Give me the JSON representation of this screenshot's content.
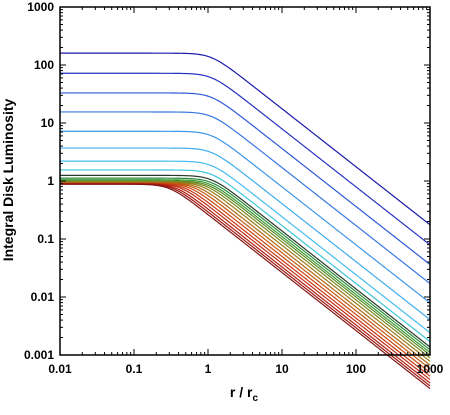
{
  "chart_data": {
    "type": "line",
    "xlabel": "r / r",
    "xlabel_subscript": "c",
    "ylabel": "Integral  Disk  Luminosity",
    "x_scale": "log",
    "y_scale": "log",
    "xlim": [
      0.01,
      1000
    ],
    "ylim": [
      0.001,
      1000
    ],
    "x_ticks": [
      "0.01",
      "0.1",
      "1",
      "10",
      "100",
      "1000"
    ],
    "y_ticks": [
      "0.001",
      "0.01",
      "0.1",
      "1",
      "10",
      "100",
      "1000"
    ],
    "grid": false,
    "legend": "none",
    "series_model": "plateau then power-law fall-off (slope -1 in log-log)",
    "series": [
      {
        "plateau": 160,
        "knee": 1.1,
        "color": "#1a1aa6"
      },
      {
        "plateau": 72,
        "knee": 1.1,
        "color": "#2630c0"
      },
      {
        "plateau": 33,
        "knee": 1.1,
        "color": "#2f5ad6"
      },
      {
        "plateau": 15.5,
        "knee": 1.1,
        "color": "#3a78e0"
      },
      {
        "plateau": 7.2,
        "knee": 1.1,
        "color": "#3c95e8"
      },
      {
        "plateau": 3.7,
        "knee": 1.1,
        "color": "#40acee"
      },
      {
        "plateau": 2.2,
        "knee": 1.1,
        "color": "#45bcee"
      },
      {
        "plateau": 1.55,
        "knee": 1.1,
        "color": "#3fc6d8"
      },
      {
        "plateau": 1.25,
        "knee": 1.1,
        "color": "#2a3a2a"
      },
      {
        "plateau": 1.12,
        "knee": 1.1,
        "color": "#2a8a3a"
      },
      {
        "plateau": 1.05,
        "knee": 1.05,
        "color": "#3a9a30"
      },
      {
        "plateau": 1.0,
        "knee": 1.0,
        "color": "#5a8a2a"
      },
      {
        "plateau": 0.97,
        "knee": 0.92,
        "color": "#7a8a20"
      },
      {
        "plateau": 0.95,
        "knee": 0.82,
        "color": "#9a7a18"
      },
      {
        "plateau": 0.93,
        "knee": 0.72,
        "color": "#b06a14"
      },
      {
        "plateau": 0.92,
        "knee": 0.63,
        "color": "#c05a12"
      },
      {
        "plateau": 0.91,
        "knee": 0.55,
        "color": "#c84812"
      },
      {
        "plateau": 0.9,
        "knee": 0.48,
        "color": "#c83812"
      },
      {
        "plateau": 0.9,
        "knee": 0.42,
        "color": "#c02a12"
      },
      {
        "plateau": 0.89,
        "knee": 0.37,
        "color": "#b01e12"
      },
      {
        "plateau": 0.89,
        "knee": 0.33,
        "color": "#9a1812"
      },
      {
        "plateau": 0.88,
        "knee": 0.3,
        "color": "#801412"
      }
    ]
  }
}
